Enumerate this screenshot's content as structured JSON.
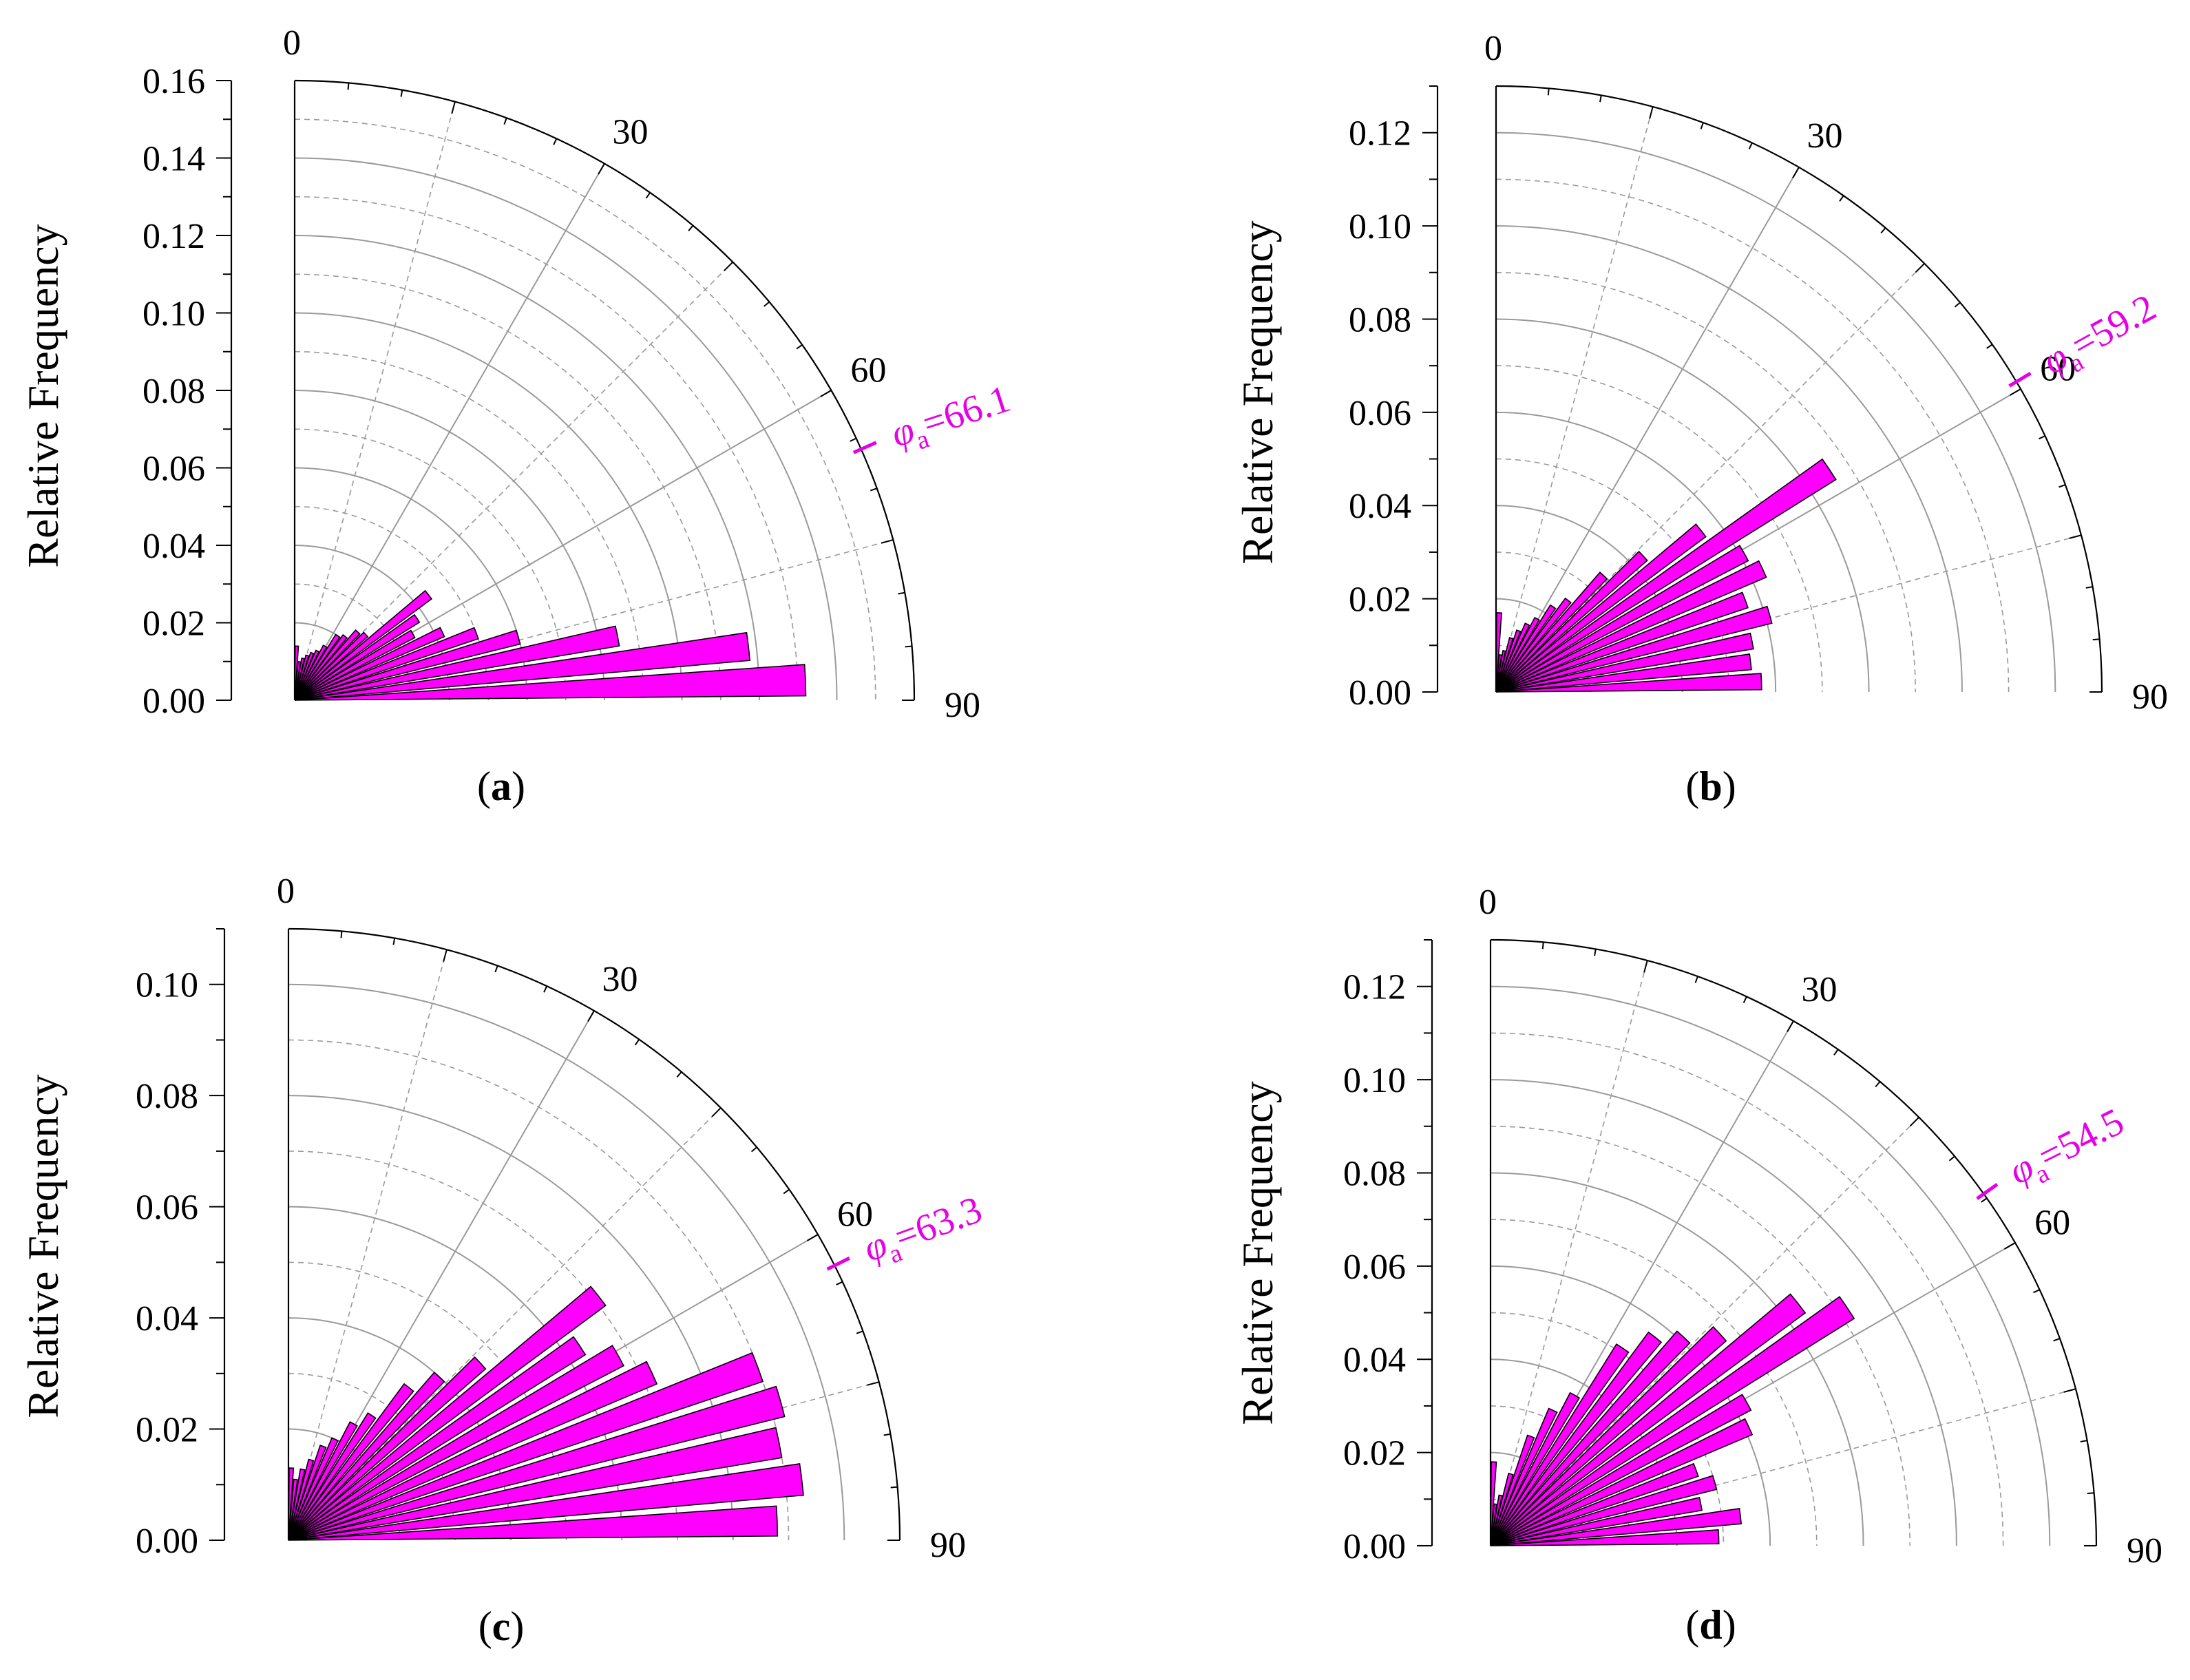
{
  "figure": {
    "bar_color": "#ff00ff",
    "bar_edge": "#000000",
    "annotation_color": "#e600e6",
    "grid_color": "#9a9a9a",
    "axis_color": "#000000"
  },
  "chart_data": [
    {
      "id": "a",
      "type": "polar-bar",
      "label_prefix": "(",
      "label_letter": "a",
      "label_suffix": ")",
      "ylabel": "Relative Frequency",
      "ylim": [
        0,
        0.16
      ],
      "rings": [
        0.02,
        0.04,
        0.06,
        0.08,
        0.1,
        0.12,
        0.14,
        0.16
      ],
      "tick_labels": [
        "0.00",
        "0.02",
        "0.04",
        "0.06",
        "0.08",
        "0.10",
        "0.12",
        "0.14",
        "0.16"
      ],
      "angle_range": [
        0,
        90
      ],
      "angle_labels": [
        "0",
        "30",
        "60",
        "90"
      ],
      "bin_width_deg": 4.5,
      "bin_centers_deg": [
        2.25,
        6.75,
        11.25,
        15.75,
        20.25,
        24.75,
        29.25,
        33.75,
        38.25,
        42.75,
        47.25,
        51.75,
        56.25,
        60.75,
        65.25,
        69.75,
        74.25,
        78.75,
        83.25,
        87.75
      ],
      "values": [
        0.014,
        0.01,
        0.011,
        0.012,
        0.013,
        0.014,
        0.016,
        0.02,
        0.021,
        0.024,
        0.025,
        0.044,
        0.038,
        0.035,
        0.042,
        0.05,
        0.06,
        0.085,
        0.118,
        0.132
      ],
      "annotation": {
        "symbol": "φ",
        "subscript": "a",
        "text": "=66.1",
        "angle_deg": 66.1
      }
    },
    {
      "id": "b",
      "type": "polar-bar",
      "label_prefix": "(",
      "label_letter": "b",
      "label_suffix": ")",
      "ylabel": "Relative Frequency",
      "ylim": [
        0,
        0.13
      ],
      "rings": [
        0.02,
        0.04,
        0.06,
        0.08,
        0.1,
        0.12
      ],
      "tick_labels": [
        "0.00",
        "0.02",
        "0.04",
        "0.06",
        "0.08",
        "0.10",
        "0.12"
      ],
      "angle_range": [
        0,
        90
      ],
      "angle_labels": [
        "0",
        "30",
        "60",
        "90"
      ],
      "bin_width_deg": 4.5,
      "bin_centers_deg": [
        2.25,
        6.75,
        11.25,
        15.75,
        20.25,
        24.75,
        29.25,
        33.75,
        38.25,
        42.75,
        47.25,
        51.75,
        56.25,
        60.75,
        65.25,
        69.75,
        74.25,
        78.75,
        83.25,
        87.75
      ],
      "values": [
        0.017,
        0.008,
        0.009,
        0.012,
        0.014,
        0.016,
        0.018,
        0.022,
        0.025,
        0.034,
        0.043,
        0.056,
        0.086,
        0.061,
        0.063,
        0.057,
        0.061,
        0.056,
        0.055,
        0.057
      ],
      "annotation": {
        "symbol": "φ",
        "subscript": "a",
        "text": "=59.2",
        "angle_deg": 59.2
      }
    },
    {
      "id": "c",
      "type": "polar-bar",
      "label_prefix": "(",
      "label_letter": "c",
      "label_suffix": ")",
      "ylabel": "Relative Frequency",
      "ylim": [
        0,
        0.11
      ],
      "rings": [
        0.01,
        0.02,
        0.03,
        0.04,
        0.05,
        0.06,
        0.07,
        0.08,
        0.09,
        0.1,
        0.11
      ],
      "tick_labels": [
        "0.00",
        "0.02",
        "0.04",
        "0.06",
        "0.08",
        "0.10"
      ],
      "angle_range": [
        0,
        90
      ],
      "angle_labels": [
        "0",
        "30",
        "60",
        "90"
      ],
      "bin_width_deg": 4.5,
      "bin_centers_deg": [
        2.25,
        6.75,
        11.25,
        15.75,
        20.25,
        24.75,
        29.25,
        33.75,
        38.25,
        42.75,
        47.25,
        51.75,
        56.25,
        60.75,
        65.25,
        69.75,
        74.25,
        78.75,
        83.25,
        87.75
      ],
      "values": [
        0.013,
        0.011,
        0.013,
        0.015,
        0.018,
        0.02,
        0.024,
        0.027,
        0.035,
        0.04,
        0.047,
        0.071,
        0.063,
        0.068,
        0.072,
        0.09,
        0.092,
        0.09,
        0.093,
        0.088
      ],
      "annotation": {
        "symbol": "φ",
        "subscript": "a",
        "text": "=63.3",
        "angle_deg": 63.3
      }
    },
    {
      "id": "d",
      "type": "polar-bar",
      "label_prefix": "(",
      "label_letter": "d",
      "label_suffix": ")",
      "ylabel": "Relative Frequency",
      "ylim": [
        0,
        0.13
      ],
      "rings": [
        0.02,
        0.04,
        0.06,
        0.08,
        0.1,
        0.12
      ],
      "tick_labels": [
        "0.00",
        "0.02",
        "0.04",
        "0.06",
        "0.08",
        "0.10",
        "0.12"
      ],
      "angle_range": [
        0,
        90
      ],
      "angle_labels": [
        "0",
        "30",
        "60",
        "90"
      ],
      "bin_width_deg": 4.5,
      "bin_centers_deg": [
        2.25,
        6.75,
        11.25,
        15.75,
        20.25,
        24.75,
        29.25,
        33.75,
        38.25,
        42.75,
        47.25,
        51.75,
        56.25,
        60.75,
        65.25,
        69.75,
        74.25,
        78.75,
        83.25,
        87.75
      ],
      "values": [
        0.018,
        0.009,
        0.011,
        0.016,
        0.025,
        0.032,
        0.037,
        0.051,
        0.057,
        0.061,
        0.067,
        0.084,
        0.092,
        0.063,
        0.061,
        0.047,
        0.05,
        0.046,
        0.054,
        0.049
      ],
      "annotation": {
        "symbol": "φ",
        "subscript": "a",
        "text": "=54.5",
        "angle_deg": 54.5
      }
    }
  ]
}
